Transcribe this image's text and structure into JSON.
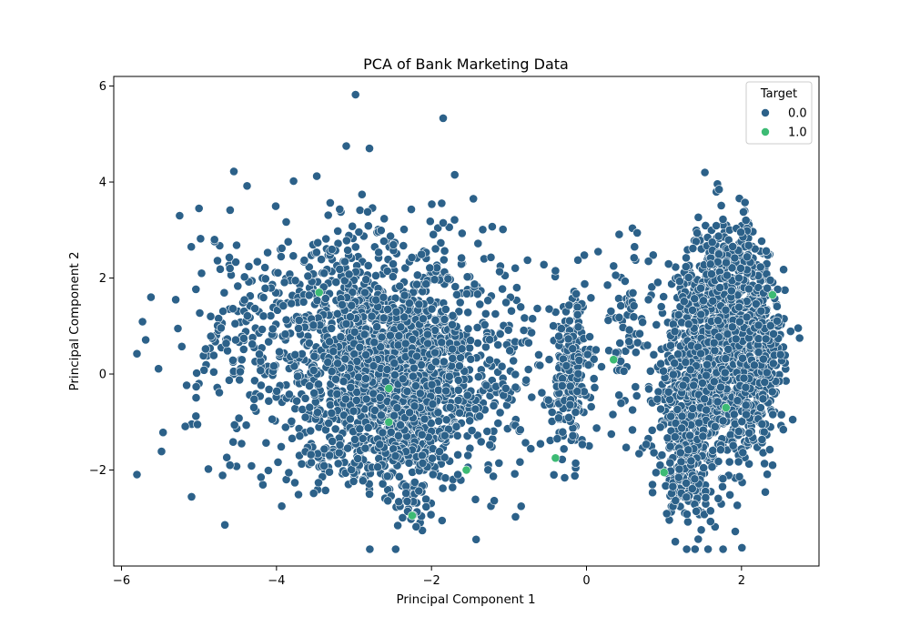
{
  "chart_data": {
    "type": "scatter",
    "title": "PCA of Bank Marketing Data",
    "xlabel": "Principal Component 1",
    "ylabel": "Principal Component 2",
    "xlim": [
      -6.1,
      3.0
    ],
    "ylim": [
      -4.0,
      6.2
    ],
    "xticks": [
      -6,
      -4,
      -2,
      0,
      2
    ],
    "yticks": [
      -2,
      0,
      2,
      4,
      6
    ],
    "xtick_labels": [
      "−6",
      "−4",
      "−2",
      "0",
      "2"
    ],
    "ytick_labels": [
      "−2",
      "0",
      "2",
      "4",
      "6"
    ],
    "grid": false,
    "legend": {
      "title": "Target",
      "placement": "top-right",
      "entries": [
        "0.0",
        "1.0"
      ]
    },
    "colors": {
      "0.0": "#2c6189",
      "1.0": "#3dbb74",
      "marker_edge": "#ffffff",
      "axes": "#000000"
    },
    "series": [
      {
        "name": "0.0",
        "clusters": [
          {
            "cx": -2.3,
            "cy": -0.2,
            "sx": 0.32,
            "sy": 0.95,
            "n": 900
          },
          {
            "cx": -3.1,
            "cy": 0.3,
            "sx": 0.38,
            "sy": 1.05,
            "n": 450
          },
          {
            "cx": -3.5,
            "cy": 0.3,
            "sx": 1.0,
            "sy": 1.3,
            "n": 260
          },
          {
            "cx": -1.5,
            "cy": 0.2,
            "sx": 0.45,
            "sy": 1.2,
            "n": 280
          },
          {
            "cx": -2.8,
            "cy": 2.2,
            "sx": 0.6,
            "sy": 0.7,
            "n": 150
          },
          {
            "cx": -4.4,
            "cy": 0.8,
            "sx": 0.45,
            "sy": 1.1,
            "n": 90
          },
          {
            "cx": -2.7,
            "cy": -1.7,
            "sx": 0.55,
            "sy": 0.35,
            "n": 120
          },
          {
            "cx": -2.25,
            "cy": -2.7,
            "sx": 0.12,
            "sy": 0.3,
            "n": 30
          },
          {
            "cx": -0.2,
            "cy": 0.0,
            "sx": 0.13,
            "sy": 0.85,
            "n": 230
          },
          {
            "cx": 0.5,
            "cy": 0.9,
            "sx": 0.15,
            "sy": 1.0,
            "n": 60
          },
          {
            "cx": 1.35,
            "cy": -0.3,
            "sx": 0.25,
            "sy": 1.2,
            "n": 550
          },
          {
            "cx": 1.75,
            "cy": 0.6,
            "sx": 0.25,
            "sy": 1.2,
            "n": 700
          },
          {
            "cx": 2.2,
            "cy": 0.4,
            "sx": 0.18,
            "sy": 1.0,
            "n": 380
          },
          {
            "cx": 1.25,
            "cy": -2.2,
            "sx": 0.15,
            "sy": 0.35,
            "n": 80
          },
          {
            "cx": 1.9,
            "cy": 2.5,
            "sx": 0.18,
            "sy": 0.35,
            "n": 80
          }
        ],
        "points": [
          [
            -5.62,
            1.6
          ],
          [
            -5.3,
            1.55
          ],
          [
            -5.25,
            3.3
          ],
          [
            -5.1,
            2.65
          ],
          [
            -5.0,
            3.45
          ],
          [
            -5.03,
            0.02
          ],
          [
            -5.02,
            -1.05
          ],
          [
            -4.85,
            1.2
          ],
          [
            -4.8,
            2.8
          ],
          [
            -4.6,
            2.2
          ],
          [
            -4.55,
            4.22
          ],
          [
            -4.38,
            3.92
          ],
          [
            -3.78,
            4.02
          ],
          [
            -3.1,
            4.75
          ],
          [
            -2.98,
            5.82
          ],
          [
            -2.8,
            4.7
          ],
          [
            -1.85,
            5.33
          ],
          [
            -1.85,
            3.15
          ],
          [
            -1.7,
            4.15
          ],
          [
            -1.4,
            2.72
          ],
          [
            -4.6,
            -1.9
          ],
          [
            -4.45,
            -1.45
          ],
          [
            -4.2,
            -2.15
          ],
          [
            -0.55,
            2.28
          ],
          [
            -0.4,
            2.15
          ],
          [
            -0.9,
            1.8
          ],
          [
            0.15,
            2.55
          ],
          [
            0.35,
            2.25
          ],
          [
            0.62,
            2.65
          ],
          [
            0.8,
            2.35
          ],
          [
            0.8,
            1.55
          ],
          [
            -0.42,
            -2.1
          ],
          [
            0.32,
            -1.25
          ],
          [
            0.95,
            -1.9
          ],
          [
            1.6,
            -2.85
          ]
        ]
      },
      {
        "name": "1.0",
        "points": [
          [
            -3.45,
            1.7
          ],
          [
            -2.55,
            -0.3
          ],
          [
            -2.55,
            -1.0
          ],
          [
            -2.25,
            -2.95
          ],
          [
            -1.55,
            -2.0
          ],
          [
            -0.4,
            -1.75
          ],
          [
            0.35,
            0.3
          ],
          [
            1.0,
            -2.05
          ],
          [
            1.8,
            -0.7
          ],
          [
            2.4,
            1.65
          ]
        ]
      }
    ]
  }
}
